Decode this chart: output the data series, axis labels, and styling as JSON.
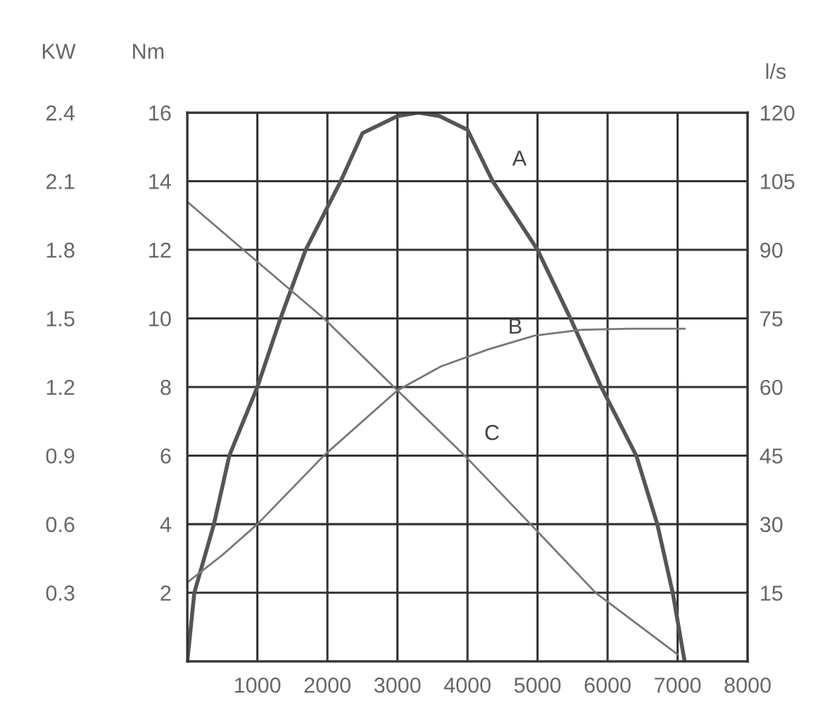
{
  "chart_data": {
    "type": "line",
    "ylabel": "Nm",
    "y3label": "KW",
    "y2label": "l/s",
    "xlim": [
      0,
      8000
    ],
    "xticks": [
      1000,
      2000,
      3000,
      4000,
      5000,
      6000,
      7000,
      8000
    ],
    "ylim": [
      0,
      16
    ],
    "yticks": [
      2,
      4,
      6,
      8,
      10,
      12,
      14,
      16
    ],
    "y2lim": [
      0,
      120
    ],
    "y2ticks": [
      15,
      30,
      45,
      60,
      75,
      90,
      105,
      120
    ],
    "y3lim": [
      0,
      2.4
    ],
    "y3ticks": [
      0.3,
      0.6,
      0.9,
      1.2,
      1.5,
      1.8,
      2.1,
      2.4
    ],
    "grid": true,
    "legend": false,
    "marker": "none",
    "line_style": "solid",
    "series": [
      {
        "name": "A",
        "color": "#555555",
        "x": [
          0,
          100,
          380,
          600,
          1000,
          1330,
          1690,
          2190,
          2500,
          3000,
          3300,
          3600,
          4000,
          4360,
          5000,
          5470,
          5910,
          6410,
          6710,
          6930,
          7100
        ],
        "values": [
          0,
          2,
          4,
          6,
          8,
          10,
          12,
          14,
          15.4,
          15.9,
          16,
          15.9,
          15.5,
          14,
          12,
          10,
          8,
          6,
          4,
          2,
          0
        ]
      },
      {
        "name": "B",
        "color": "#777777",
        "x": [
          0,
          500,
          1000,
          1950,
          3000,
          3620,
          4300,
          4960,
          5630,
          6300,
          7100
        ],
        "values": [
          2.3,
          3.1,
          4,
          6,
          7.9,
          8.6,
          9.1,
          9.5,
          9.67,
          9.7,
          9.7
        ]
      },
      {
        "name": "C",
        "color": "#777777",
        "x": [
          0,
          800,
          1950,
          3000,
          3960,
          4900,
          5830,
          7000
        ],
        "values": [
          13.4,
          12,
          10,
          7.9,
          6,
          4,
          2,
          0.2
        ]
      }
    ]
  }
}
